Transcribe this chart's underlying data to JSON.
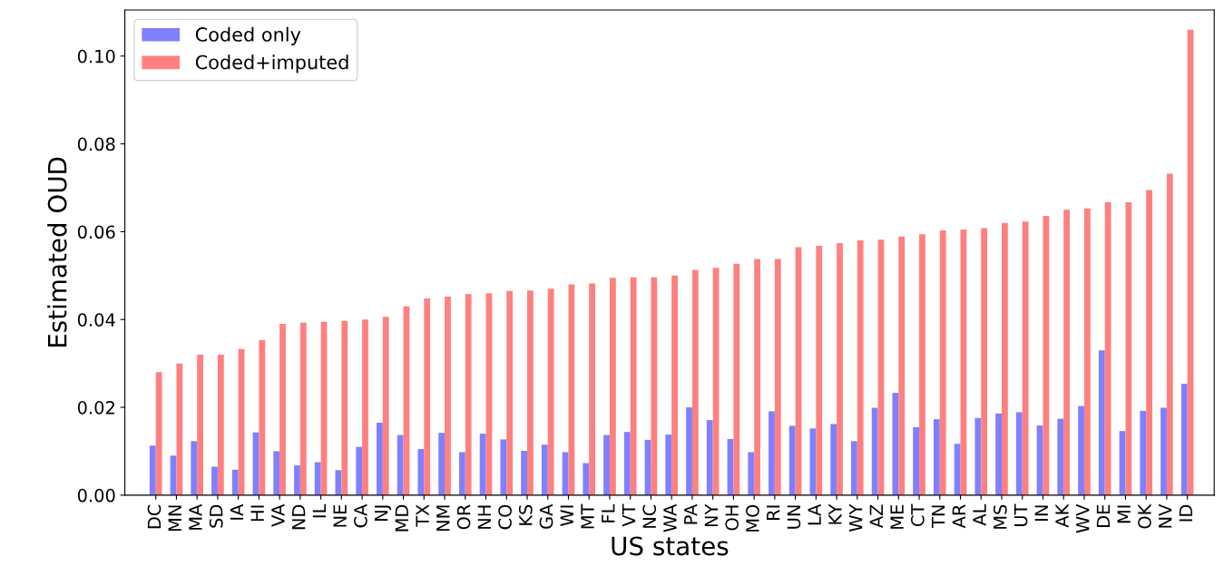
{
  "chart_data": {
    "type": "bar",
    "xlabel": "US states",
    "ylabel": "Estimated OUD",
    "categories": [
      "DC",
      "MN",
      "MA",
      "SD",
      "IA",
      "HI",
      "VA",
      "ND",
      "IL",
      "NE",
      "CA",
      "NJ",
      "MD",
      "TX",
      "NM",
      "OR",
      "NH",
      "CO",
      "KS",
      "GA",
      "WI",
      "MT",
      "FL",
      "VT",
      "NC",
      "WA",
      "PA",
      "NY",
      "OH",
      "MO",
      "RI",
      "UN",
      "LA",
      "KY",
      "WY",
      "AZ",
      "ME",
      "CT",
      "TN",
      "AR",
      "AL",
      "MS",
      "UT",
      "IN",
      "AK",
      "WV",
      "DE",
      "MI",
      "OK",
      "NV",
      "ID"
    ],
    "series": [
      {
        "name": "Coded only",
        "color": "#8080ff",
        "values": [
          0.0113,
          0.009,
          0.0123,
          0.0065,
          0.0058,
          0.0143,
          0.01,
          0.0068,
          0.0075,
          0.0057,
          0.011,
          0.0165,
          0.0137,
          0.0105,
          0.0142,
          0.0098,
          0.014,
          0.0127,
          0.0101,
          0.0115,
          0.0098,
          0.0073,
          0.0137,
          0.0144,
          0.0126,
          0.0138,
          0.02,
          0.0171,
          0.0128,
          0.0098,
          0.0191,
          0.0158,
          0.0152,
          0.0162,
          0.0123,
          0.0199,
          0.0233,
          0.0155,
          0.0173,
          0.0117,
          0.0176,
          0.0186,
          0.0189,
          0.0159,
          0.0174,
          0.0203,
          0.033,
          0.0146,
          0.0192,
          0.0199,
          0.0254
        ]
      },
      {
        "name": "Coded+imputed",
        "color": "#ff8080",
        "values": [
          0.028,
          0.03,
          0.032,
          0.032,
          0.0333,
          0.0353,
          0.039,
          0.0393,
          0.0395,
          0.0397,
          0.04,
          0.0406,
          0.043,
          0.0448,
          0.0452,
          0.0458,
          0.046,
          0.0465,
          0.0466,
          0.047,
          0.048,
          0.0482,
          0.0495,
          0.0496,
          0.0496,
          0.05,
          0.0513,
          0.0518,
          0.0527,
          0.0538,
          0.0538,
          0.0565,
          0.0568,
          0.0574,
          0.058,
          0.0582,
          0.0589,
          0.0594,
          0.0603,
          0.0605,
          0.0608,
          0.062,
          0.0623,
          0.0636,
          0.065,
          0.0653,
          0.0667,
          0.0667,
          0.0695,
          0.0732,
          0.106
        ]
      }
    ],
    "ylim": [
      0,
      0.1105
    ],
    "yticks": [
      {
        "value": 0,
        "label": "0.00"
      },
      {
        "value": 0.02,
        "label": "0.02"
      },
      {
        "value": 0.04,
        "label": "0.04"
      },
      {
        "value": 0.06,
        "label": "0.06"
      },
      {
        "value": 0.08,
        "label": "0.08"
      },
      {
        "value": 0.1,
        "label": "0.10"
      }
    ],
    "grid": false,
    "legend": "top left"
  }
}
